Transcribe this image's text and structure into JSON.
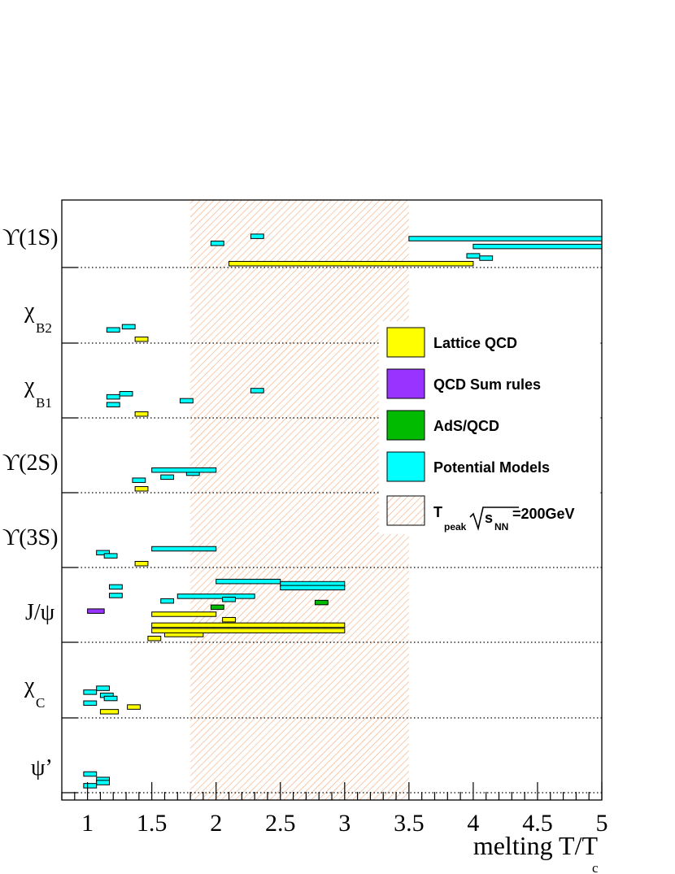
{
  "chart_data": {
    "type": "bar",
    "xlabel": "melting T/T",
    "xlabel_sub": "c",
    "xlim": [
      0.8,
      5.0
    ],
    "x_ticks": [
      "1",
      "1.5",
      "2",
      "2.5",
      "3",
      "3.5",
      "4",
      "4.5",
      "5"
    ],
    "categories": [
      {
        "main": "ϒ(1S)",
        "sub": ""
      },
      {
        "main": "χ",
        "sub": "B2"
      },
      {
        "main": "χ",
        "sub": "B1"
      },
      {
        "main": "ϒ(2S)",
        "sub": ""
      },
      {
        "main": "ϒ(3S)",
        "sub": ""
      },
      {
        "main": "J/ψ",
        "sub": ""
      },
      {
        "main": "χ",
        "sub": "C"
      },
      {
        "main": "ψ’",
        "sub": ""
      }
    ],
    "shaded_band": {
      "x": [
        1.8,
        3.5
      ],
      "label_main": "T",
      "label_sub1": "peak",
      "label_mid": "s",
      "label_sub2": "NN",
      "label_tail": "=200GeV"
    },
    "legend": [
      {
        "name": "Lattice QCD",
        "color": "#ffff00"
      },
      {
        "name": "QCD Sum rules",
        "color": "#9933ff"
      },
      {
        "name": "AdS/QCD",
        "color": "#00bb00"
      },
      {
        "name": "Potential Models",
        "color": "#00ffff"
      }
    ],
    "series": [
      {
        "name": "Lattice QCD",
        "color": "#ffff00",
        "intervals": [
          {
            "cat": 0,
            "x": [
              2.1,
              4.0
            ],
            "level": 0
          },
          {
            "cat": 1,
            "x": [
              1.37,
              1.47
            ],
            "level": 0
          },
          {
            "cat": 2,
            "x": [
              1.37,
              1.47
            ],
            "level": 0
          },
          {
            "cat": 3,
            "x": [
              1.37,
              1.47
            ],
            "level": 0
          },
          {
            "cat": 4,
            "x": [
              1.37,
              1.47
            ],
            "level": 0
          },
          {
            "cat": 5,
            "x": [
              1.47,
              1.57
            ],
            "level": 0
          },
          {
            "cat": 5,
            "x": [
              1.6,
              1.9
            ],
            "level": 0.5
          },
          {
            "cat": 5,
            "x": [
              1.5,
              3.0
            ],
            "level": 1
          },
          {
            "cat": 5,
            "x": [
              1.5,
              3.0
            ],
            "level": 1.7
          },
          {
            "cat": 5,
            "x": [
              2.05,
              2.15
            ],
            "level": 2.4
          },
          {
            "cat": 5,
            "x": [
              1.5,
              2.0
            ],
            "level": 3.1
          },
          {
            "cat": 6,
            "x": [
              1.1,
              1.24
            ],
            "level": 0.3
          },
          {
            "cat": 6,
            "x": [
              1.31,
              1.41
            ],
            "level": 0.9
          }
        ]
      },
      {
        "name": "QCD Sum rules",
        "color": "#9933ff",
        "intervals": [
          {
            "cat": 5,
            "x": [
              1.0,
              1.13
            ],
            "level": 3.5
          }
        ]
      },
      {
        "name": "AdS/QCD",
        "color": "#00bb00",
        "intervals": [
          {
            "cat": 5,
            "x": [
              1.96,
              2.06
            ],
            "level": 4.0
          },
          {
            "cat": 5,
            "x": [
              2.77,
              2.87
            ],
            "level": 4.6
          }
        ]
      },
      {
        "name": "Potential Models",
        "color": "#00ffff",
        "intervals": [
          {
            "cat": 0,
            "x": [
              3.95,
              4.05
            ],
            "level": 1.0
          },
          {
            "cat": 0,
            "x": [
              4.05,
              4.15
            ],
            "level": 0.7
          },
          {
            "cat": 0,
            "x": [
              4.0,
              5.0
            ],
            "level": 2.2
          },
          {
            "cat": 0,
            "x": [
              3.5,
              5.0
            ],
            "level": 3.2
          },
          {
            "cat": 0,
            "x": [
              1.96,
              2.06
            ],
            "level": 2.6
          },
          {
            "cat": 0,
            "x": [
              2.27,
              2.37
            ],
            "level": 3.5
          },
          {
            "cat": 1,
            "x": [
              1.15,
              1.25
            ],
            "level": 1.2
          },
          {
            "cat": 1,
            "x": [
              1.27,
              1.37
            ],
            "level": 1.6
          },
          {
            "cat": 2,
            "x": [
              1.15,
              1.25
            ],
            "level": 1.2
          },
          {
            "cat": 2,
            "x": [
              1.15,
              1.25
            ],
            "level": 2.2
          },
          {
            "cat": 2,
            "x": [
              1.25,
              1.35
            ],
            "level": 2.6
          },
          {
            "cat": 2,
            "x": [
              1.72,
              1.82
            ],
            "level": 1.7
          },
          {
            "cat": 2,
            "x": [
              2.27,
              2.37
            ],
            "level": 3.0
          },
          {
            "cat": 3,
            "x": [
              1.35,
              1.45
            ],
            "level": 1.1
          },
          {
            "cat": 3,
            "x": [
              1.57,
              1.67
            ],
            "level": 1.5
          },
          {
            "cat": 3,
            "x": [
              1.77,
              1.87
            ],
            "level": 2.0
          },
          {
            "cat": 3,
            "x": [
              1.5,
              2.0
            ],
            "level": 2.4
          },
          {
            "cat": 4,
            "x": [
              1.07,
              1.17
            ],
            "level": 1.4
          },
          {
            "cat": 4,
            "x": [
              1.13,
              1.23
            ],
            "level": 1.0
          },
          {
            "cat": 4,
            "x": [
              1.5,
              2.0
            ],
            "level": 1.9
          },
          {
            "cat": 5,
            "x": [
              1.17,
              1.27
            ],
            "level": 6.6
          },
          {
            "cat": 5,
            "x": [
              1.17,
              1.27
            ],
            "level": 5.5
          },
          {
            "cat": 5,
            "x": [
              1.57,
              1.67
            ],
            "level": 4.8
          },
          {
            "cat": 5,
            "x": [
              1.7,
              2.3
            ],
            "level": 5.4
          },
          {
            "cat": 5,
            "x": [
              2.05,
              2.15
            ],
            "level": 5.0
          },
          {
            "cat": 5,
            "x": [
              2.0,
              2.5
            ],
            "level": 7.3
          },
          {
            "cat": 5,
            "x": [
              2.5,
              3.0
            ],
            "level": 7.0
          },
          {
            "cat": 5,
            "x": [
              2.5,
              3.0
            ],
            "level": 6.5
          },
          {
            "cat": 6,
            "x": [
              0.97,
              1.07
            ],
            "level": 2.8
          },
          {
            "cat": 6,
            "x": [
              1.07,
              1.17
            ],
            "level": 3.3
          },
          {
            "cat": 6,
            "x": [
              1.1,
              1.2
            ],
            "level": 2.4
          },
          {
            "cat": 6,
            "x": [
              1.13,
              1.23
            ],
            "level": 2.0
          },
          {
            "cat": 6,
            "x": [
              0.97,
              1.07
            ],
            "level": 1.4
          },
          {
            "cat": 7,
            "x": [
              0.97,
              1.07
            ],
            "level": 1.9
          },
          {
            "cat": 7,
            "x": [
              1.07,
              1.17
            ],
            "level": 1.2
          },
          {
            "cat": 7,
            "x": [
              1.07,
              1.17
            ],
            "level": 0.8
          },
          {
            "cat": 7,
            "x": [
              0.97,
              1.07
            ],
            "level": 0.4
          }
        ]
      }
    ],
    "grid": "dotted row separators"
  }
}
